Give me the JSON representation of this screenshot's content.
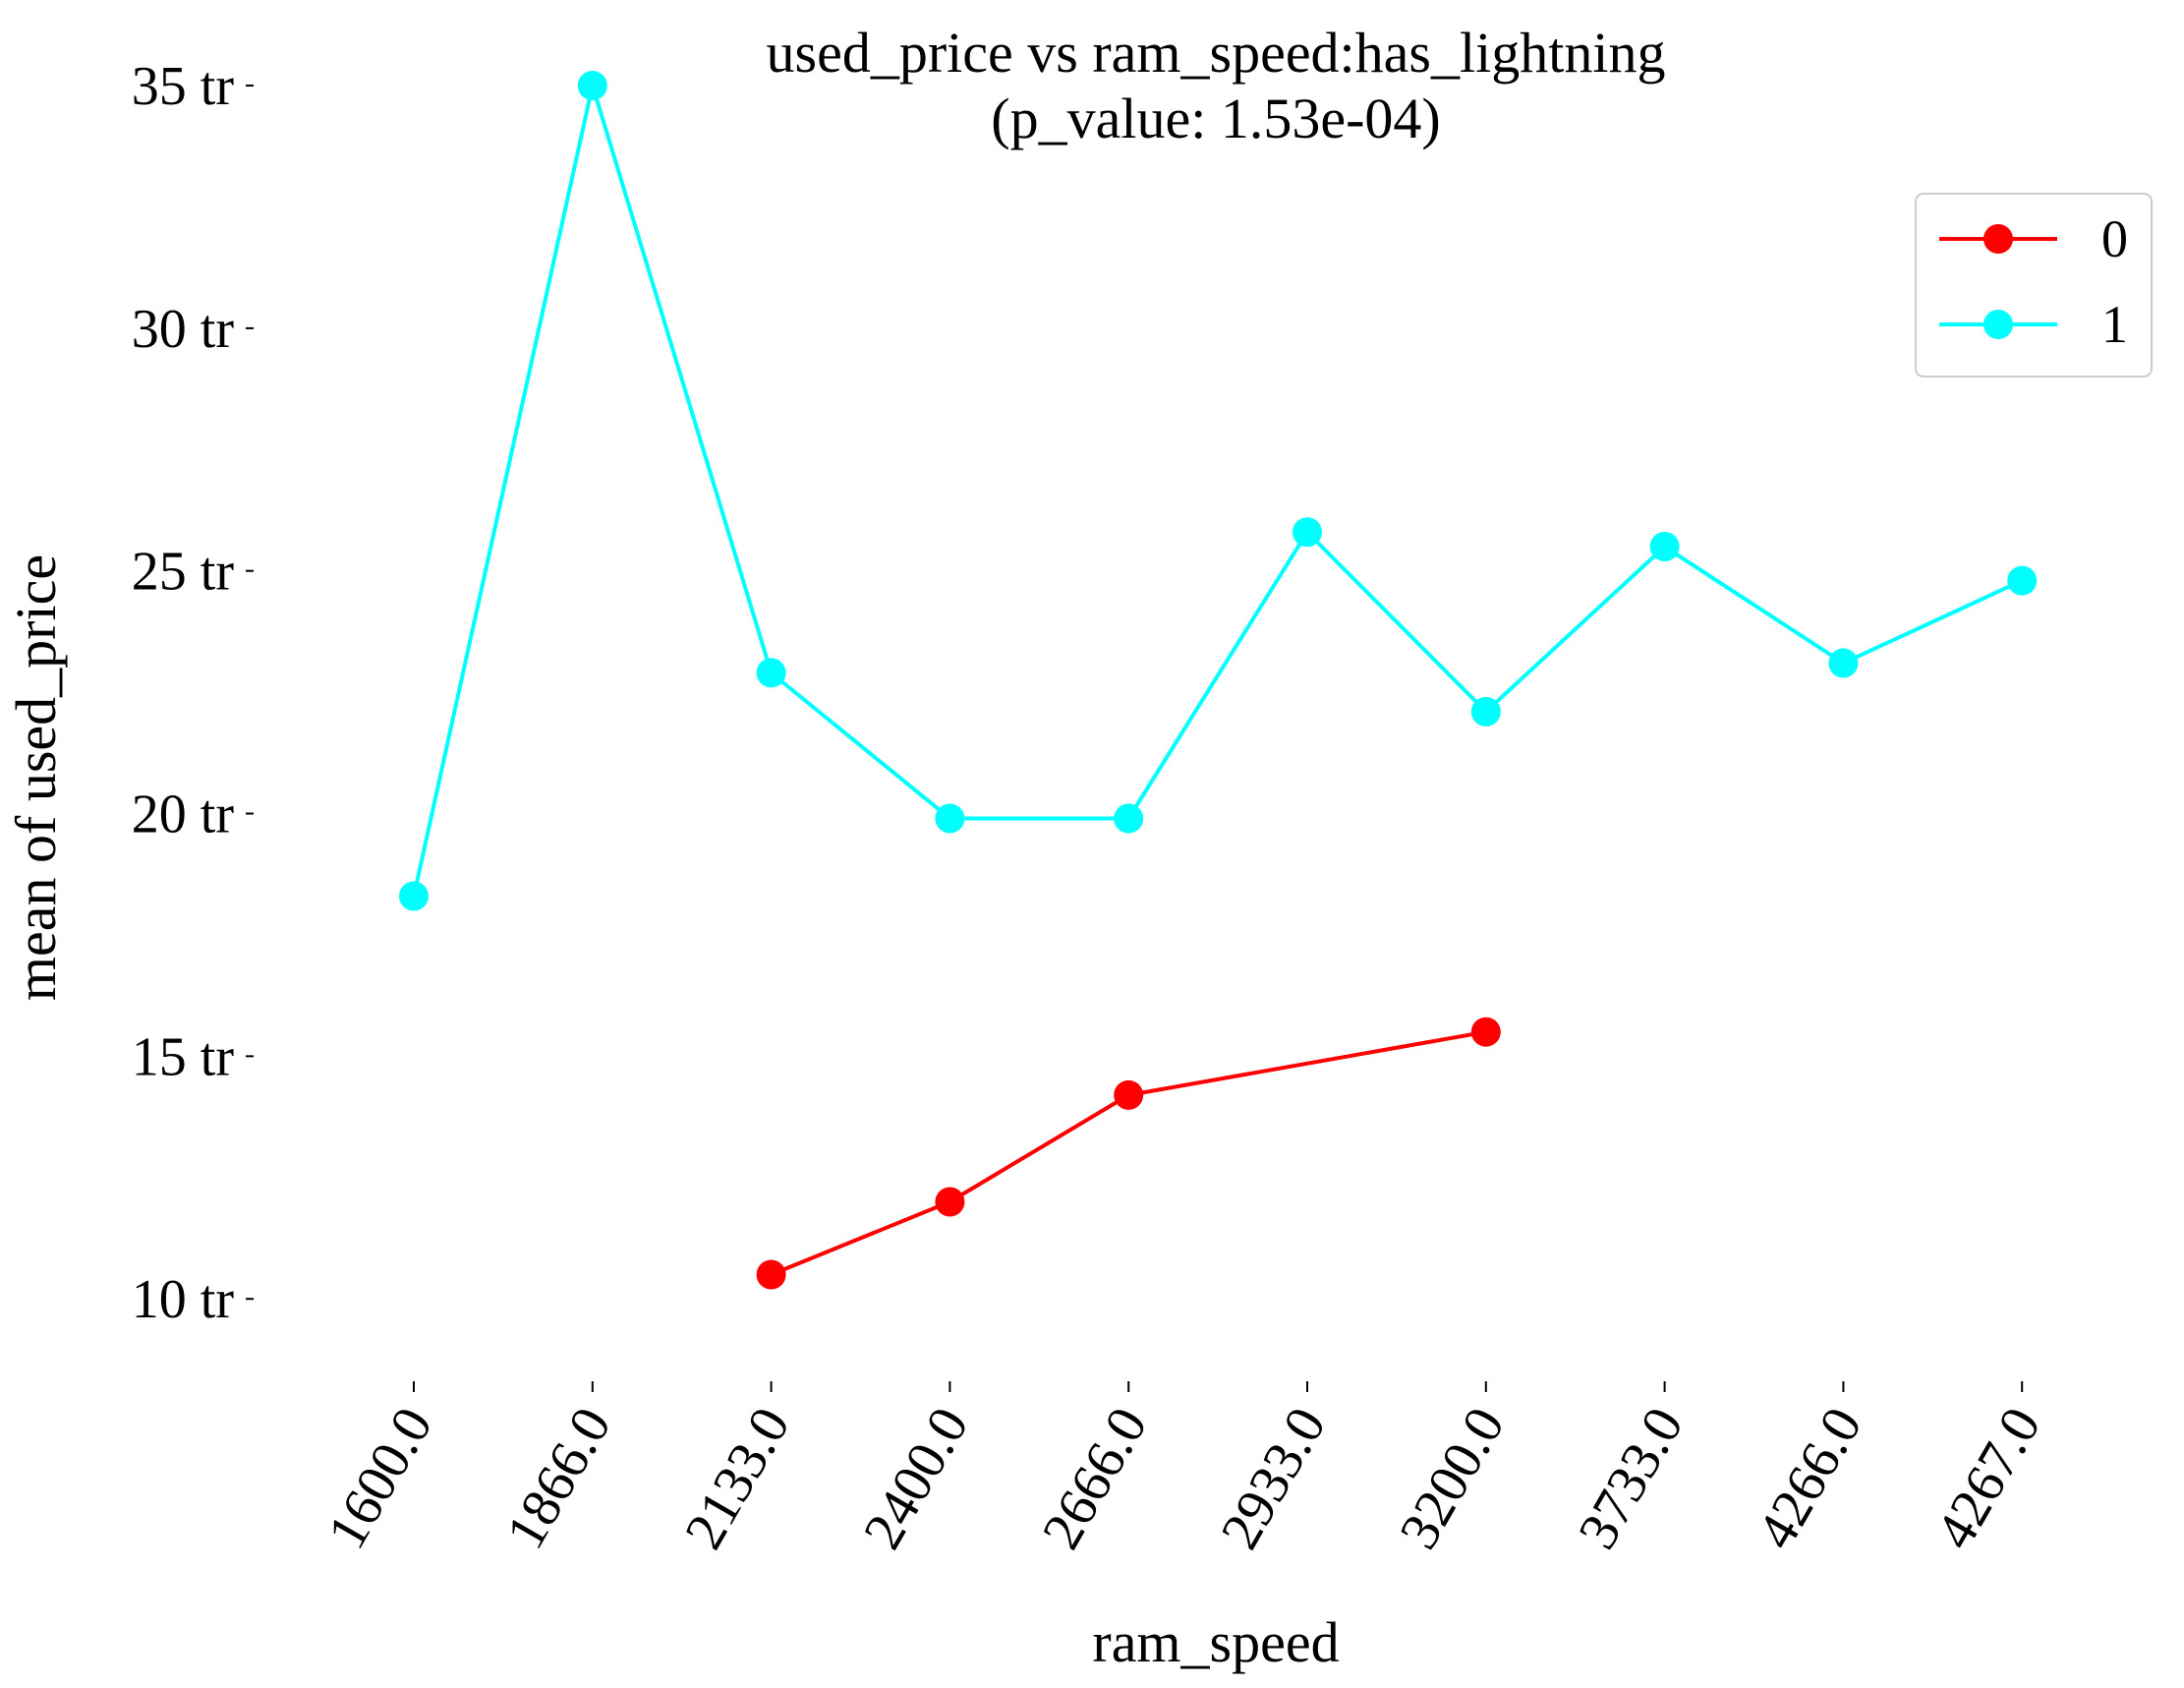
{
  "chart_data": {
    "type": "line",
    "title_line1": "used_price vs ram_speed:has_lightning",
    "title_line2": "(p_value: 1.53e-04)",
    "xlabel": "ram_speed",
    "ylabel": "mean of used_price",
    "categories": [
      "1600.0",
      "1866.0",
      "2133.0",
      "2400.0",
      "2666.0",
      "2933.0",
      "3200.0",
      "3733.0",
      "4266.0",
      "4267.0"
    ],
    "y_ticks": [
      {
        "value": 10,
        "label": "10 tr"
      },
      {
        "value": 15,
        "label": "15 tr"
      },
      {
        "value": 20,
        "label": "20 tr"
      },
      {
        "value": 25,
        "label": "25 tr"
      },
      {
        "value": 30,
        "label": "30 tr"
      },
      {
        "value": 35,
        "label": "35 tr"
      }
    ],
    "ylim": [
      8.1,
      36.5
    ],
    "grid": false,
    "legend_position": "top-right",
    "series": [
      {
        "name": "0",
        "color": "#ff0000",
        "values": [
          null,
          null,
          10.5,
          12.0,
          14.2,
          null,
          15.5,
          null,
          null,
          null
        ]
      },
      {
        "name": "1",
        "color": "#00ffff",
        "values": [
          18.3,
          35.0,
          22.9,
          19.9,
          19.9,
          25.8,
          22.1,
          25.5,
          23.1,
          24.8
        ]
      }
    ]
  }
}
